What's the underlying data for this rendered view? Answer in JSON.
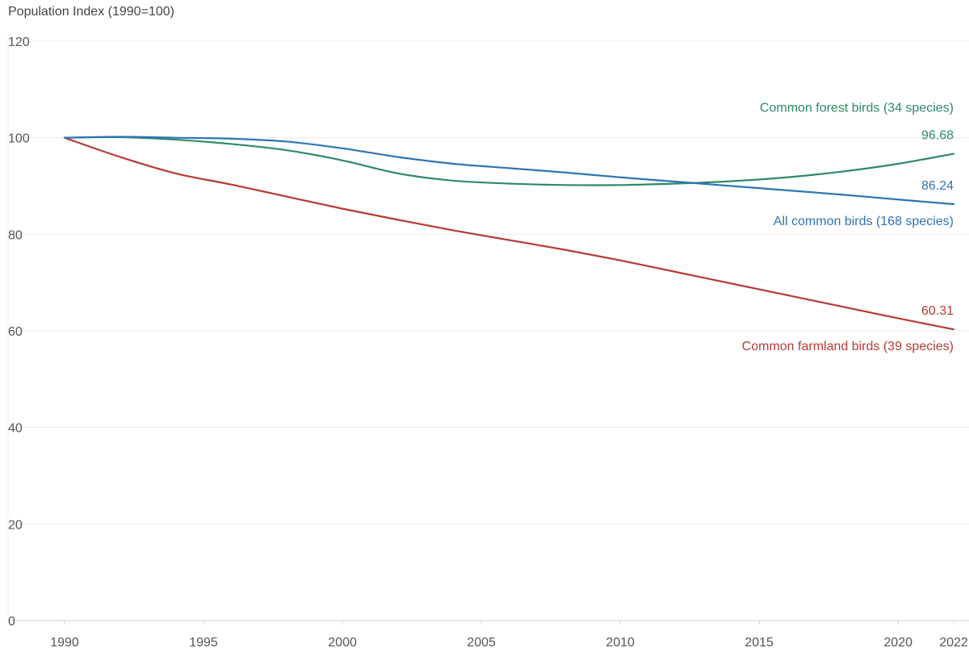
{
  "chart_data": {
    "type": "line",
    "title": "",
    "ylabel": "Population Index (1990=100)",
    "xlabel": "",
    "ylim": [
      0,
      120
    ],
    "xlim": [
      1990,
      2022
    ],
    "yticks": [
      0,
      20,
      40,
      60,
      80,
      100,
      120
    ],
    "xticks": [
      1990,
      1995,
      2000,
      2005,
      2010,
      2015,
      2020,
      2022
    ],
    "grid": true,
    "legend": "inline labels at right end",
    "series": [
      {
        "name": "Common forest birds (34 species)",
        "color": "#2e8b64",
        "end_label": "96.68",
        "x": [
          1990,
          1992,
          1994,
          1996,
          1998,
          2000,
          2002,
          2004,
          2006,
          2008,
          2010,
          2012,
          2014,
          2016,
          2018,
          2020,
          2022
        ],
        "y": [
          100,
          100.1,
          99.6,
          98.7,
          97.4,
          95.3,
          92.6,
          91.1,
          90.5,
          90.2,
          90.2,
          90.5,
          91.0,
          91.8,
          93.0,
          94.6,
          96.68
        ]
      },
      {
        "name": "All common birds (168 species)",
        "color": "#2f74b5",
        "end_label": "86.24",
        "x": [
          1990,
          1992,
          1994,
          1996,
          1998,
          2000,
          2002,
          2004,
          2006,
          2008,
          2010,
          2012,
          2014,
          2016,
          2018,
          2020,
          2022
        ],
        "y": [
          100,
          100.2,
          100.0,
          99.8,
          99.2,
          97.8,
          96.0,
          94.6,
          93.7,
          92.8,
          91.8,
          90.9,
          90.0,
          89.1,
          88.2,
          87.2,
          86.24
        ]
      },
      {
        "name": "Common farmland birds (39 species)",
        "color": "#b83a35",
        "end_label": "60.31",
        "x": [
          1990,
          1992,
          1994,
          1996,
          1998,
          2000,
          2002,
          2004,
          2006,
          2008,
          2010,
          2012,
          2014,
          2016,
          2018,
          2020,
          2022
        ],
        "y": [
          100,
          96.0,
          92.6,
          90.3,
          87.8,
          85.3,
          83.0,
          80.8,
          78.8,
          76.8,
          74.6,
          72.2,
          69.8,
          67.4,
          65.0,
          62.6,
          60.31
        ]
      }
    ]
  }
}
